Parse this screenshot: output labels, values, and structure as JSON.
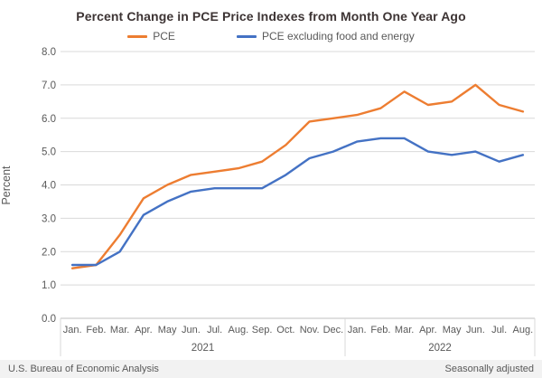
{
  "chart_data": {
    "type": "line",
    "title": "Percent Change in PCE Price Indexes from Month One Year Ago",
    "ylabel": "Percent",
    "ylim": [
      0.0,
      8.0
    ],
    "ytick_step": 1.0,
    "grid": true,
    "legend_position": "top",
    "category_groups": [
      {
        "year": "2021",
        "months": [
          "Jan.",
          "Feb.",
          "Mar.",
          "Apr.",
          "May",
          "Jun.",
          "Jul.",
          "Aug.",
          "Sep.",
          "Oct.",
          "Nov.",
          "Dec."
        ]
      },
      {
        "year": "2022",
        "months": [
          "Jan.",
          "Feb.",
          "Mar.",
          "Apr.",
          "May",
          "Jun.",
          "Jul.",
          "Aug."
        ]
      }
    ],
    "series": [
      {
        "name": "PCE",
        "color": "#ED7D31",
        "values": [
          1.5,
          1.6,
          2.5,
          3.6,
          4.0,
          4.3,
          4.4,
          4.5,
          4.7,
          5.2,
          5.9,
          6.0,
          6.1,
          6.3,
          6.8,
          6.4,
          6.5,
          7.0,
          6.4,
          6.2
        ]
      },
      {
        "name": "PCE excluding food and energy",
        "color": "#4472C4",
        "values": [
          1.6,
          1.6,
          2.0,
          3.1,
          3.5,
          3.8,
          3.9,
          3.9,
          3.9,
          4.3,
          4.8,
          5.0,
          5.3,
          5.4,
          5.4,
          5.0,
          4.9,
          5.0,
          4.7,
          4.9
        ]
      }
    ],
    "colors": {
      "grid": "#D9D9D9",
      "axis": "#BFBFBF",
      "tick_text": "#595959",
      "title_text": "#3D3434",
      "footer_bg": "#F2F2F2"
    }
  },
  "footer": {
    "left": "U.S. Bureau of Economic Analysis",
    "right": "Seasonally adjusted"
  }
}
